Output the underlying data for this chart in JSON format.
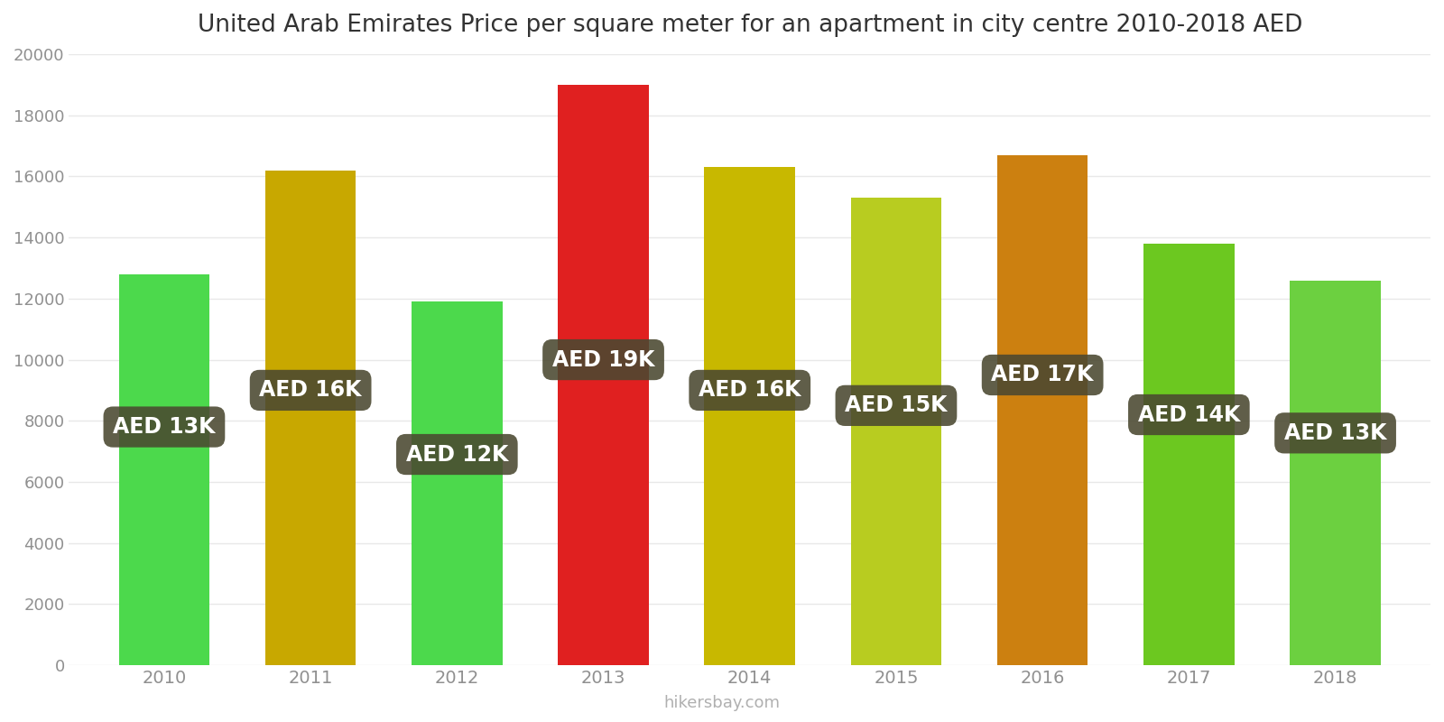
{
  "title": "United Arab Emirates Price per square meter for an apartment in city centre 2010-2018 AED",
  "years": [
    2010,
    2011,
    2012,
    2013,
    2014,
    2015,
    2016,
    2017,
    2018
  ],
  "values": [
    12800,
    16200,
    11900,
    19000,
    16300,
    15300,
    16700,
    13800,
    12600
  ],
  "labels": [
    "AED 13K",
    "AED 16K",
    "AED 12K",
    "AED 19K",
    "AED 16K",
    "AED 15K",
    "AED 17K",
    "AED 14K",
    "AED 13K"
  ],
  "bar_colors": [
    "#4cd94c",
    "#c8a800",
    "#4cd94c",
    "#e02020",
    "#c8b800",
    "#b8cc20",
    "#cc8010",
    "#6cc820",
    "#6cd040"
  ],
  "background_color": "#ffffff",
  "ylim": [
    0,
    20000
  ],
  "yticks": [
    0,
    2000,
    4000,
    6000,
    8000,
    10000,
    12000,
    14000,
    16000,
    18000,
    20000
  ],
  "grid_color": "#e8e8e8",
  "title_fontsize": 19,
  "label_bg_color": "#4a4830",
  "label_text_color": "#ffffff",
  "label_fontsize": 17,
  "label_y_positions": [
    7800,
    9000,
    6900,
    10000,
    9000,
    8500,
    9500,
    8200,
    7600
  ],
  "watermark": "hikersbay.com"
}
